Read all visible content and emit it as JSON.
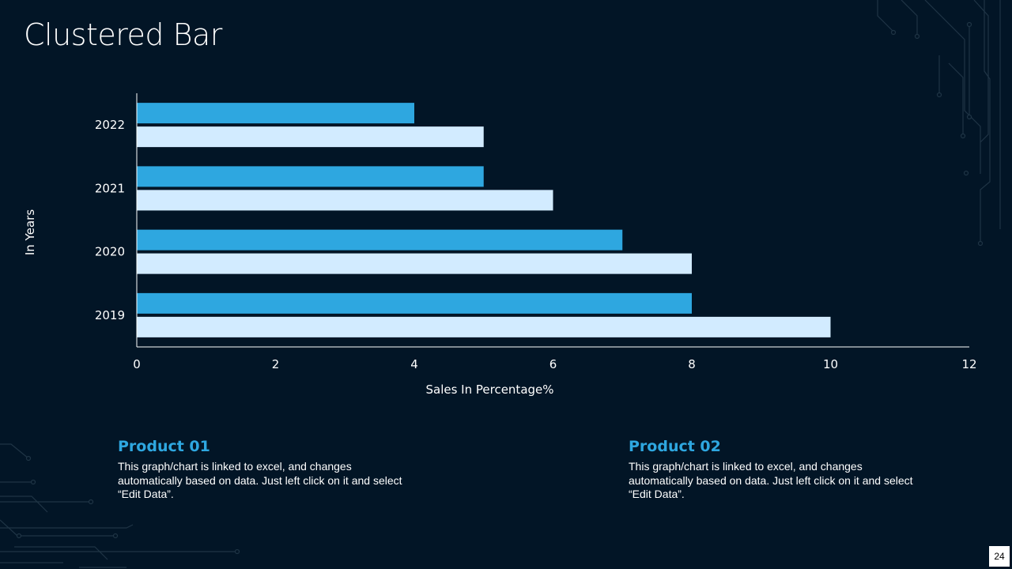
{
  "slide": {
    "title": "Clustered Bar",
    "page_number": "24"
  },
  "colors": {
    "background": "#021526",
    "series_1": "#2ea7e0",
    "series_2": "#d2ebff",
    "accent_title": "#2ea7e0"
  },
  "chart_data": {
    "type": "bar",
    "orientation": "horizontal",
    "categories": [
      "2022",
      "2021",
      "2020",
      "2019"
    ],
    "series": [
      {
        "name": "Product 01",
        "values": [
          4,
          5,
          7,
          8
        ]
      },
      {
        "name": "Product 02",
        "values": [
          5,
          6,
          8,
          10
        ]
      }
    ],
    "xlabel": "Sales In Percentage%",
    "ylabel": "In Years",
    "xlim": [
      0,
      12
    ],
    "xticks": [
      "0",
      "2",
      "4",
      "6",
      "8",
      "10",
      "12"
    ],
    "grid": false,
    "legend": "none"
  },
  "products": [
    {
      "title": "Product 01",
      "description": "This graph/chart is linked to excel, and changes automatically based on data. Just left click on it and select “Edit Data”."
    },
    {
      "title": "Product 02",
      "description": "This graph/chart is linked to excel, and changes automatically based on data. Just left click on it and select “Edit Data”."
    }
  ]
}
